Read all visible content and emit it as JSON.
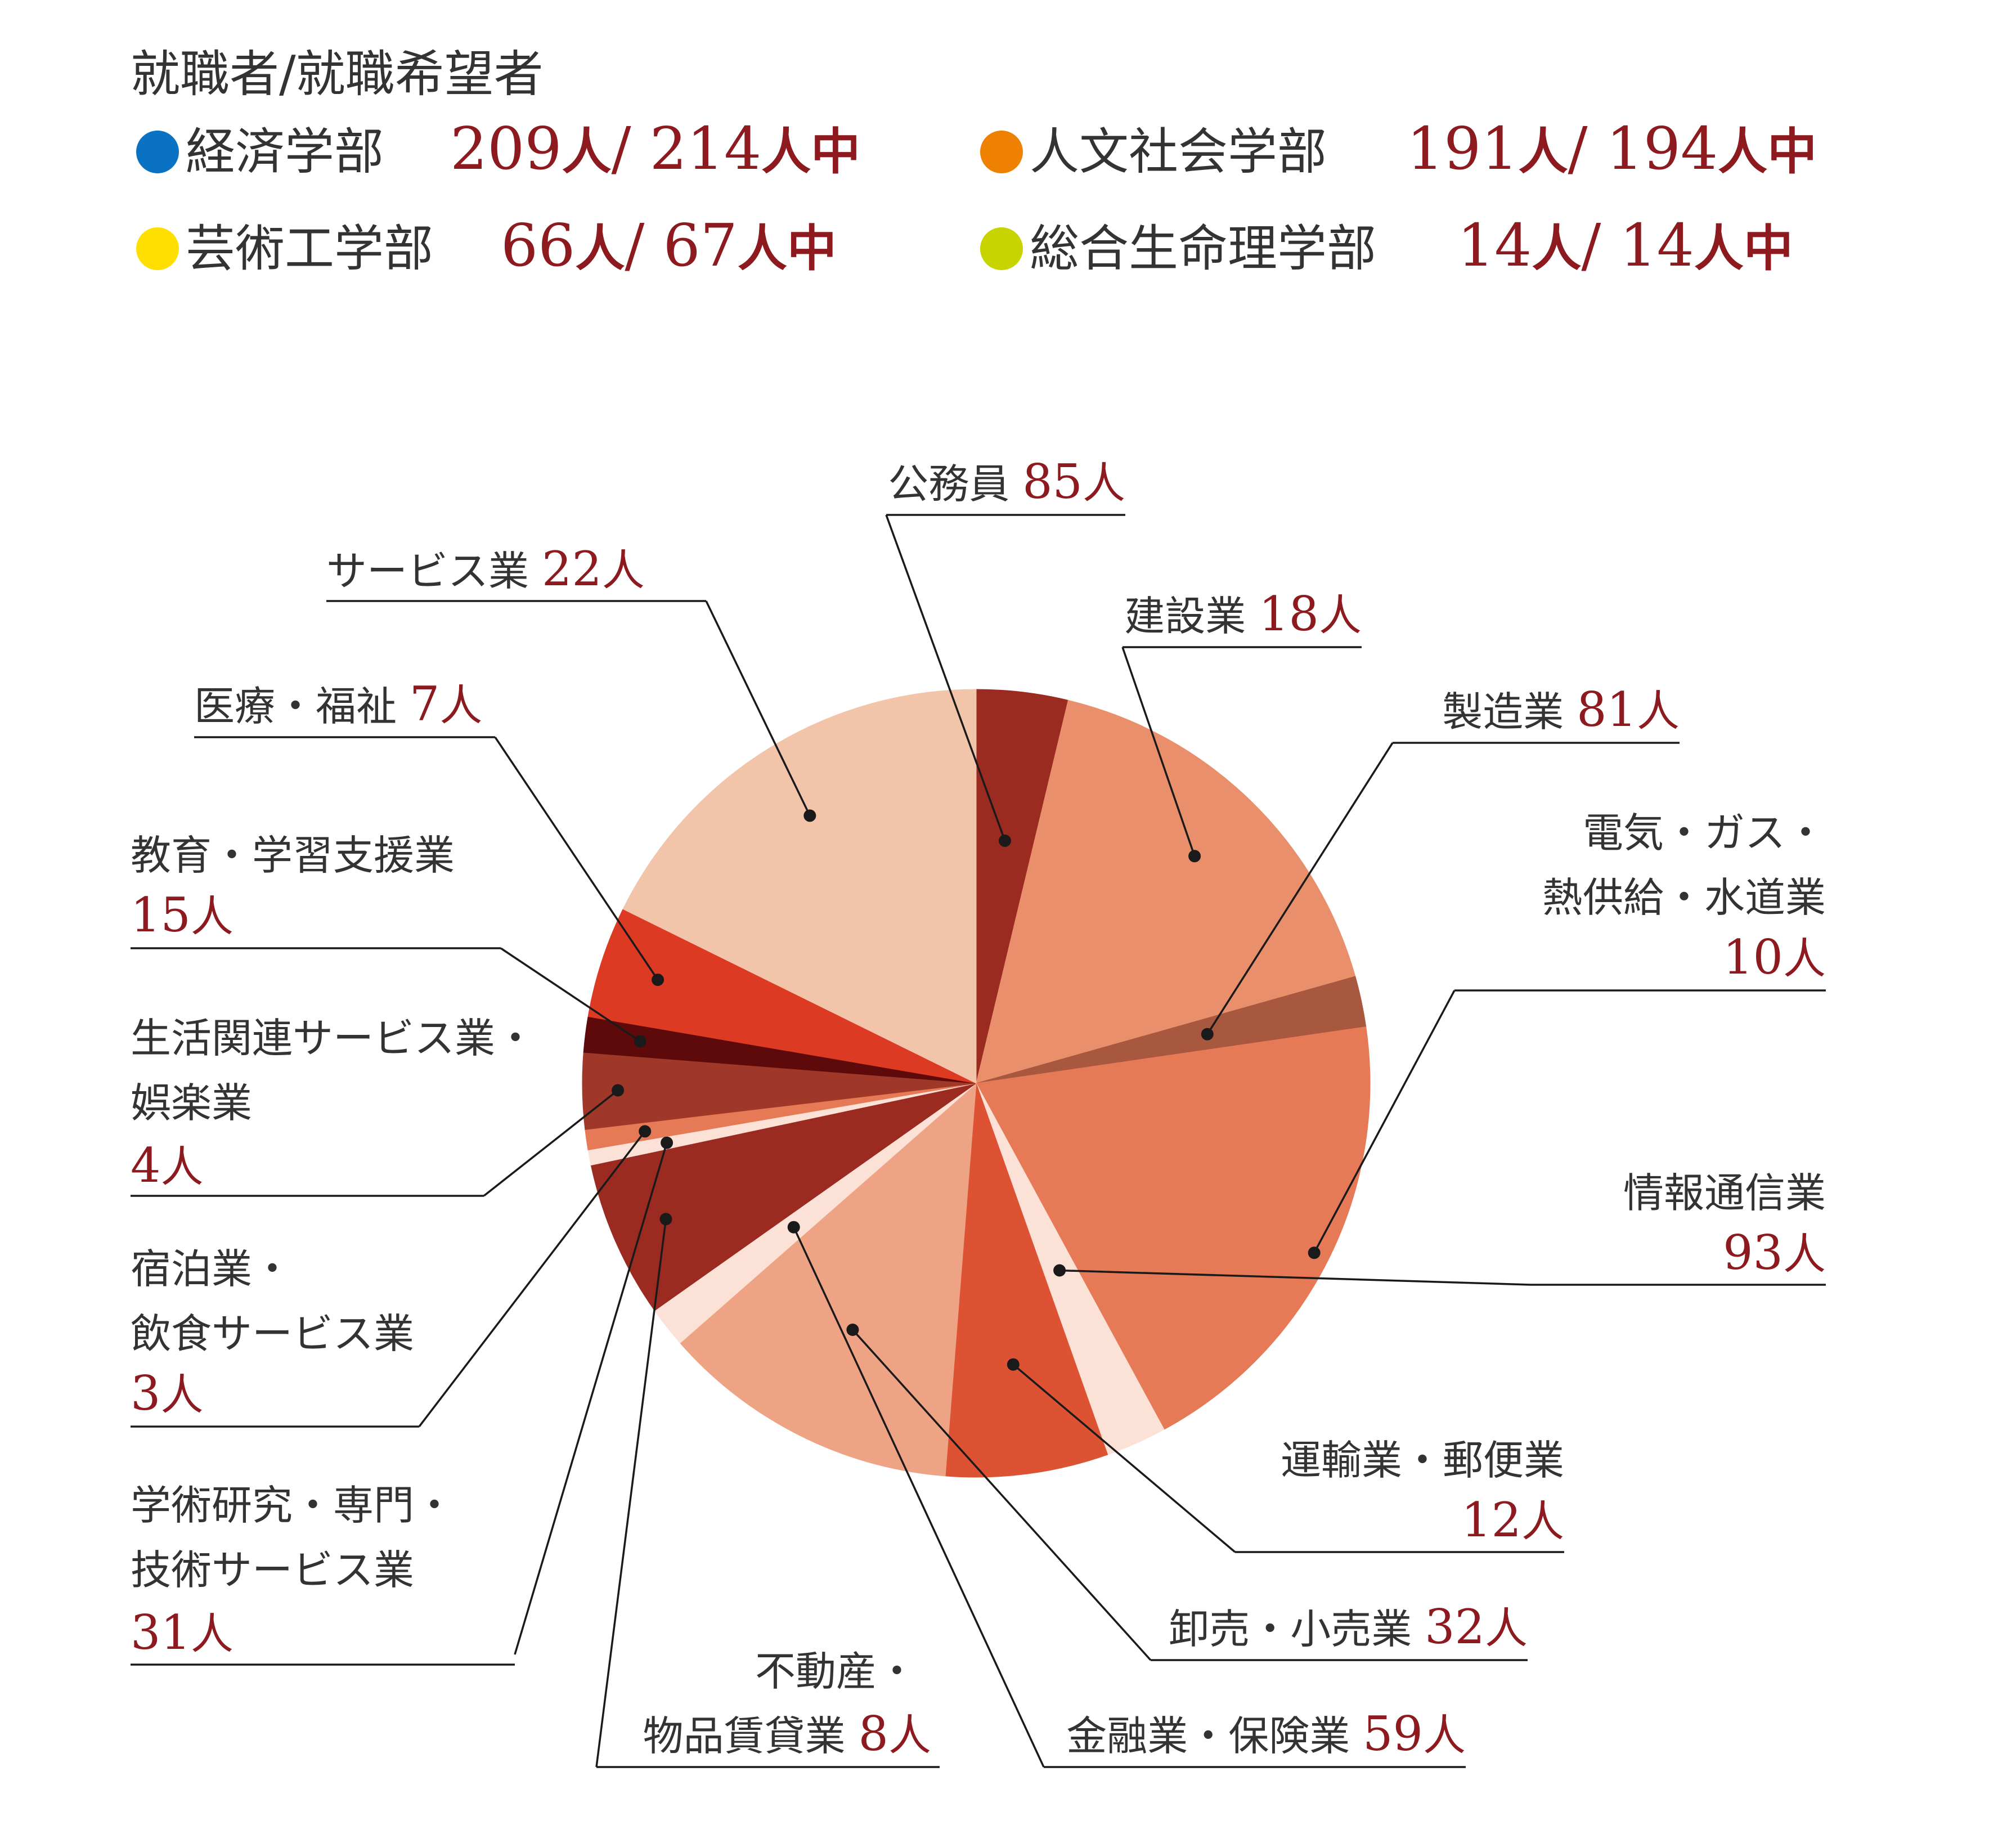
{
  "header": {
    "title": "就職者/就職希望者",
    "faculties": [
      {
        "name": "経済学部",
        "employed": "209",
        "applicants": "214",
        "color": "#0a72c2"
      },
      {
        "name": "人文社会学部",
        "employed": "191",
        "applicants": "194",
        "color": "#ee8200"
      },
      {
        "name": "芸術工学部",
        "employed": "66",
        "applicants": "67",
        "color": "#ffdf00"
      },
      {
        "name": "総合生命理学部",
        "employed": "14",
        "applicants": "14",
        "color": "#c8d400"
      }
    ],
    "unit": "人",
    "separator": "/",
    "suffix": "中"
  },
  "chart_data": {
    "type": "pie",
    "unit": "人",
    "start": "top, clockwise",
    "slices": [
      {
        "label": "建設業",
        "value": 18,
        "color": "#9b2a21"
      },
      {
        "label": "製造業",
        "value": 81,
        "color": "#e98f6c"
      },
      {
        "label": "電気・ガス・熱供給・水道業",
        "value": 10,
        "color": "#a95840"
      },
      {
        "label": "情報通信業",
        "value": 93,
        "color": "#e67a56"
      },
      {
        "label": "運輸業・郵便業",
        "value": 12,
        "color": "#fbe1d6"
      },
      {
        "label": "卸売・小売業",
        "value": 32,
        "color": "#de5234"
      },
      {
        "label": "金融業・保険業",
        "value": 59,
        "color": "#eea385"
      },
      {
        "label": "不動産・物品賃貸業",
        "value": 8,
        "color": "#fbe1d6"
      },
      {
        "label": "学術研究・専門・技術サービス業",
        "value": 31,
        "color": "#9b2a21"
      },
      {
        "label": "宿泊業・飲食サービス業",
        "value": 3,
        "color": "#fbe1d6"
      },
      {
        "label": "生活関連サービス業・娯楽業",
        "value": 4,
        "color": "#e67a56"
      },
      {
        "label": "教育・学習支援業",
        "value": 15,
        "color": "#a0382a"
      },
      {
        "label": "医療・福祉",
        "value": 7,
        "color": "#5e0a0a"
      },
      {
        "label": "サービス業",
        "value": 22,
        "color": "#dd3a24"
      },
      {
        "label": "公務員",
        "value": 85,
        "color": "#f2c4aa"
      }
    ]
  },
  "labels": [
    {
      "lines": [
        "公務員"
      ],
      "value": "85"
    },
    {
      "lines": [
        "建設業"
      ],
      "value": "18"
    },
    {
      "lines": [
        "製造業"
      ],
      "value": "81"
    },
    {
      "lines": [
        "電気・ガス・",
        "熱供給・水道業"
      ],
      "value": "10"
    },
    {
      "lines": [
        "情報通信業"
      ],
      "value": "93"
    },
    {
      "lines": [
        "運輸業・郵便業"
      ],
      "value": "12"
    },
    {
      "lines": [
        "卸売・小売業"
      ],
      "value": "32"
    },
    {
      "lines": [
        "金融業・保険業"
      ],
      "value": "59"
    },
    {
      "lines": [
        "不動産・",
        "物品賃貸業"
      ],
      "value": "8"
    },
    {
      "lines": [
        "学術研究・専門・",
        "技術サービス業"
      ],
      "value": "31"
    },
    {
      "lines": [
        "宿泊業・",
        "飲食サービス業"
      ],
      "value": "3"
    },
    {
      "lines": [
        "生活関連サービス業・",
        "娯楽業"
      ],
      "value": "4"
    },
    {
      "lines": [
        "教育・学習支援業"
      ],
      "value": "15"
    },
    {
      "lines": [
        "医療・福祉"
      ],
      "value": "7"
    },
    {
      "lines": [
        "サービス業"
      ],
      "value": "22"
    }
  ]
}
